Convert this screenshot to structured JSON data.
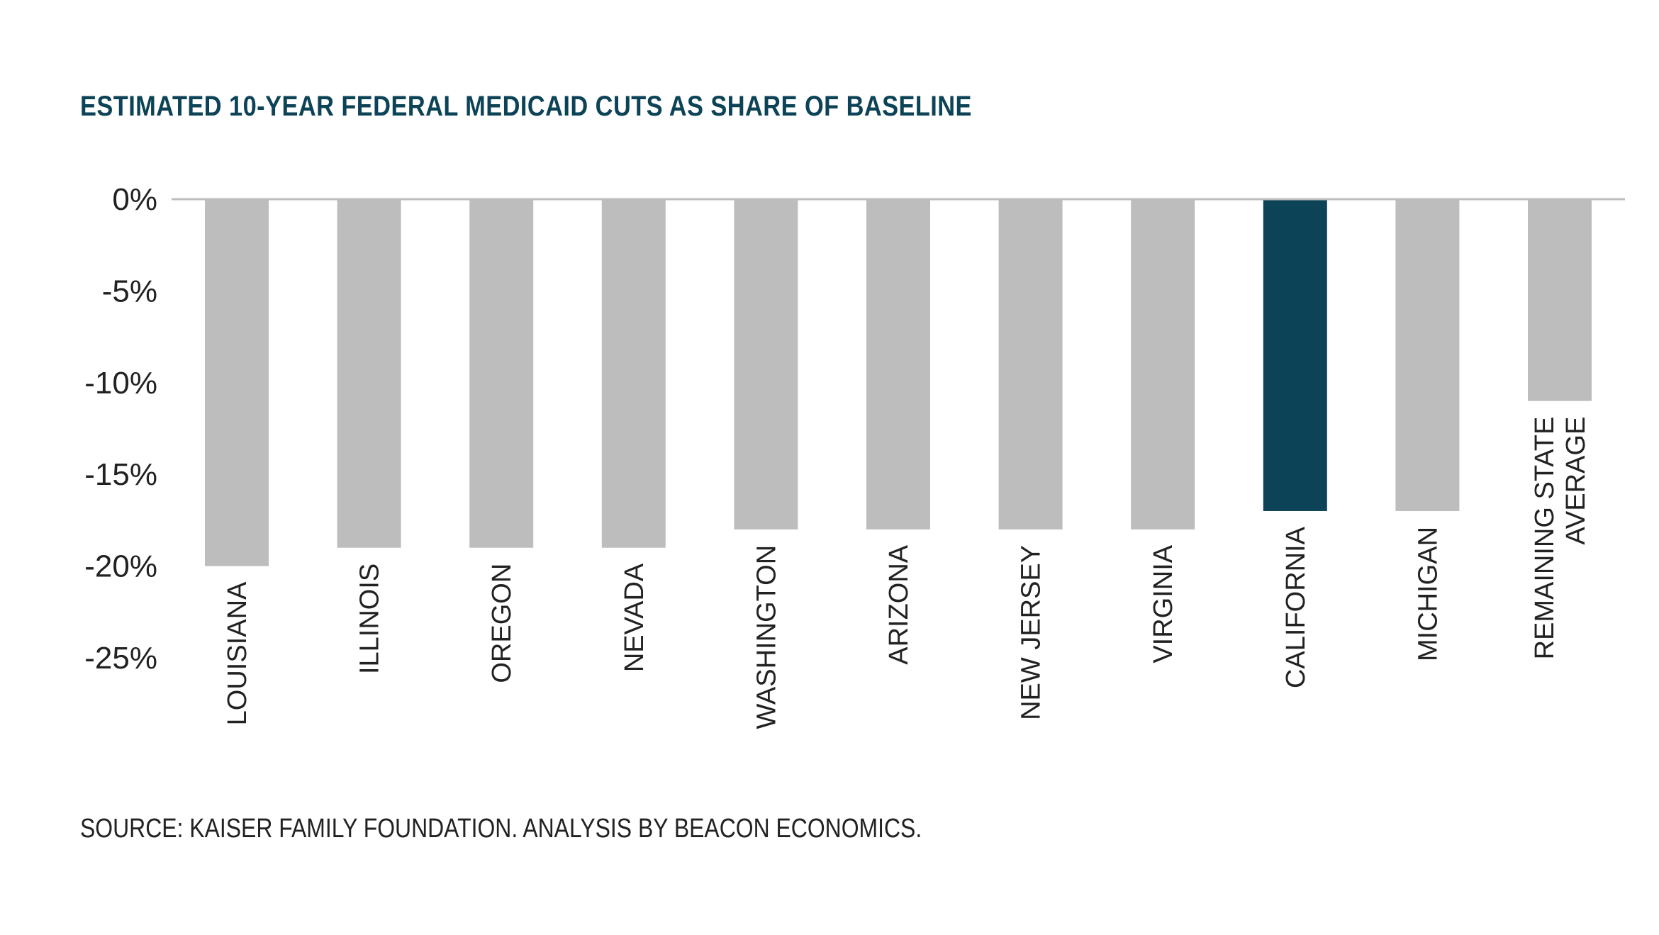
{
  "chart_data": {
    "type": "bar",
    "title": "ESTIMATED 10-YEAR FEDERAL MEDICAID CUTS AS SHARE OF BASELINE",
    "categories": [
      [
        "LOUISIANA"
      ],
      [
        "ILLINOIS"
      ],
      [
        "OREGON"
      ],
      [
        "NEVADA"
      ],
      [
        "WASHINGTON"
      ],
      [
        "ARIZONA"
      ],
      [
        "NEW JERSEY"
      ],
      [
        "VIRGINIA"
      ],
      [
        "CALIFORNIA"
      ],
      [
        "MICHIGAN"
      ],
      [
        "REMAINING STATE",
        "AVERAGE"
      ]
    ],
    "values": [
      -20,
      -19,
      -19,
      -19,
      -18,
      -18,
      -18,
      -18,
      -17,
      -17,
      -11
    ],
    "highlight_index": 8,
    "colors": {
      "default_bar": "#bdbdbd",
      "highlight_bar": "#0d4357",
      "axis_line": "#bdbdbd",
      "title": "#0d4357",
      "text": "#222222"
    },
    "y_ticks": [
      "0%",
      "-5%",
      "-10%",
      "-15%",
      "-20%",
      "-25%"
    ],
    "y_tick_values": [
      0,
      -5,
      -10,
      -15,
      -20,
      -25
    ],
    "ylim": [
      -25,
      0
    ],
    "xlabel": "",
    "ylabel": "",
    "grid": false,
    "legend": "none"
  },
  "source": "SOURCE: KAISER FAMILY FOUNDATION. ANALYSIS BY BEACON ECONOMICS."
}
